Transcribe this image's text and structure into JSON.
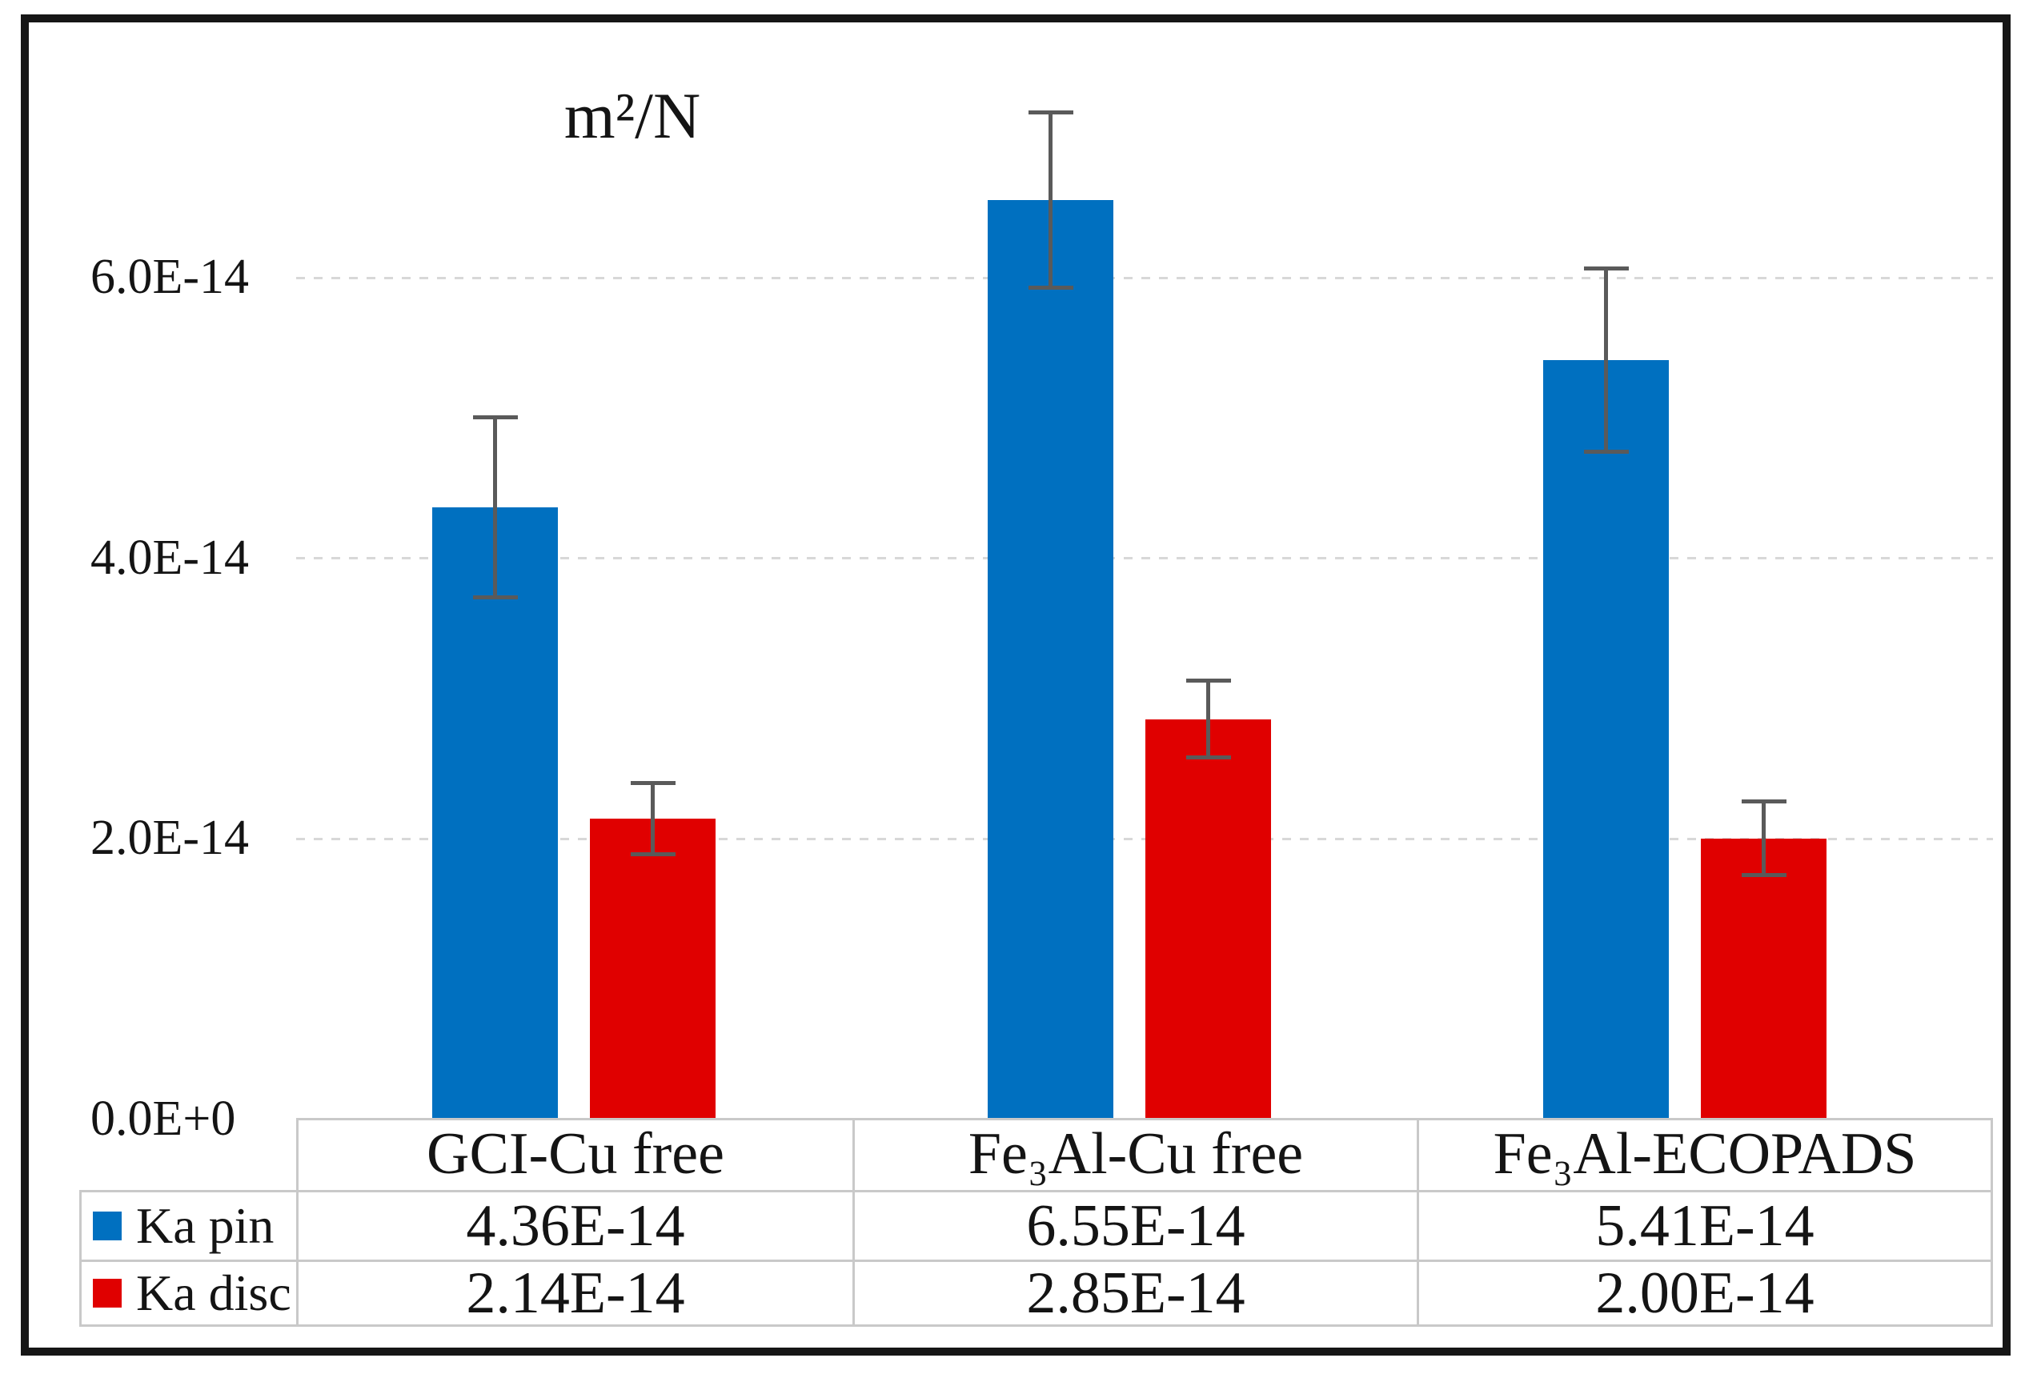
{
  "chart": {
    "unit_label": "m²/N"
  },
  "y_axis": {
    "ticks": [
      {
        "label": "6.0E-14",
        "value_e14": 6
      },
      {
        "label": "4.0E-14",
        "value_e14": 4
      },
      {
        "label": "2.0E-14",
        "value_e14": 2
      },
      {
        "label": "0.0E+0",
        "value_e14": 0
      }
    ]
  },
  "table": {
    "columns": [
      "GCI-Cu free",
      "Fe₃Al-Cu free",
      "Fe₃Al-ECOPADS"
    ],
    "rows": [
      {
        "label": "Ka pin",
        "swatch_color": "#0070C0",
        "values": [
          "4.36E-14",
          "6.55E-14",
          "5.41E-14"
        ]
      },
      {
        "label": "Ka disc",
        "swatch_color": "#E00000",
        "values": [
          "2.14E-14",
          "2.85E-14",
          "2.00E-14"
        ]
      }
    ]
  },
  "chart_data": {
    "type": "bar",
    "title": "m²/N",
    "ylabel": "m²/N",
    "categories": [
      "GCI-Cu free",
      "Fe₃Al-Cu free",
      "Fe₃Al-ECOPADS"
    ],
    "series": [
      {
        "name": "Ka pin",
        "color": "#0070C0",
        "values": [
          4.36e-14,
          6.55e-14,
          5.41e-14
        ],
        "errors": [
          6.4e-15,
          6.2e-15,
          6.5e-15
        ]
      },
      {
        "name": "Ka disc",
        "color": "#E00000",
        "values": [
          2.14e-14,
          2.85e-14,
          2e-14
        ],
        "errors": [
          2.5e-15,
          2.7e-15,
          2.6e-15
        ]
      }
    ],
    "error_bars": true,
    "ylim": [
      0,
      7.8e-14
    ],
    "yticks_e14": [
      0,
      2,
      4,
      6
    ],
    "grid": "horizontal-dashed-lines",
    "legend_position": "table-left-column",
    "value_labels_location": "data-table-below-chart"
  }
}
